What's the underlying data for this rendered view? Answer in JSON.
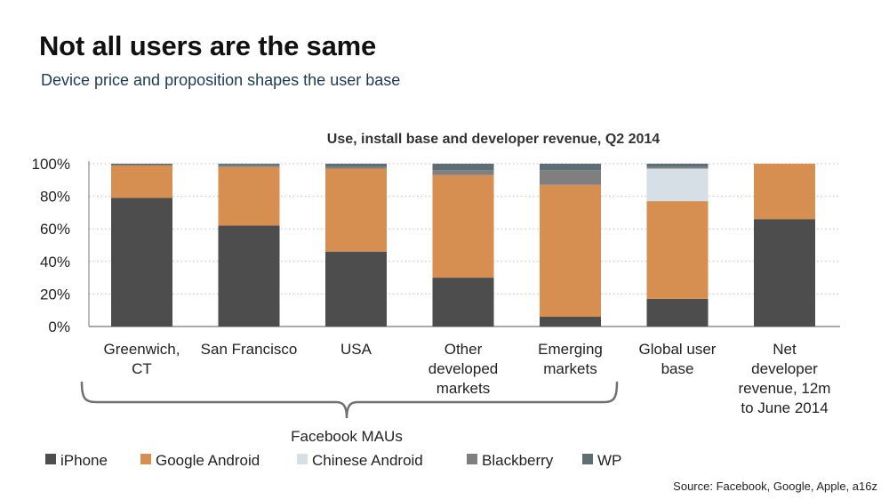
{
  "header": {
    "title": "Not all users are the same",
    "subtitle": "Device price and proposition shapes the user base"
  },
  "footer": {
    "source": "Source: Facebook, Google, Apple, a16z"
  },
  "chart_data": {
    "type": "bar",
    "stacked": true,
    "title": "Use, install base and developer revenue, Q2 2014",
    "xlabel": "",
    "ylabel": "",
    "ylim": [
      0,
      100
    ],
    "y_ticks": [
      "0%",
      "20%",
      "40%",
      "60%",
      "80%",
      "100%"
    ],
    "categories": [
      [
        "Greenwich,",
        "CT"
      ],
      [
        "San Francisco"
      ],
      [
        "USA"
      ],
      [
        "Other",
        "developed",
        "markets"
      ],
      [
        "Emerging",
        "markets"
      ],
      [
        "Global user",
        "base"
      ],
      [
        "Net",
        "developer",
        "revenue, 12m",
        "to June 2014"
      ]
    ],
    "series": [
      {
        "name": "iPhone",
        "color": "#4d4d4d",
        "values": [
          79,
          62,
          46,
          30,
          6,
          17,
          66
        ]
      },
      {
        "name": "Google Android",
        "color": "#d68f50",
        "values": [
          20,
          36,
          51,
          63,
          81,
          60,
          34
        ]
      },
      {
        "name": "Chinese Android",
        "color": "#d6dee6",
        "values": [
          0,
          0,
          0,
          0,
          0,
          20,
          0
        ]
      },
      {
        "name": "Blackberry",
        "color": "#7f7f7f",
        "values": [
          0,
          1,
          1,
          3,
          9,
          1,
          0
        ]
      },
      {
        "name": "WP",
        "color": "#5d6e75",
        "values": [
          1,
          1,
          2,
          4,
          4,
          2,
          0
        ]
      }
    ],
    "bracket_label": "Facebook MAUs",
    "grid": "dotted horizontal",
    "legend_position": "bottom-left"
  }
}
